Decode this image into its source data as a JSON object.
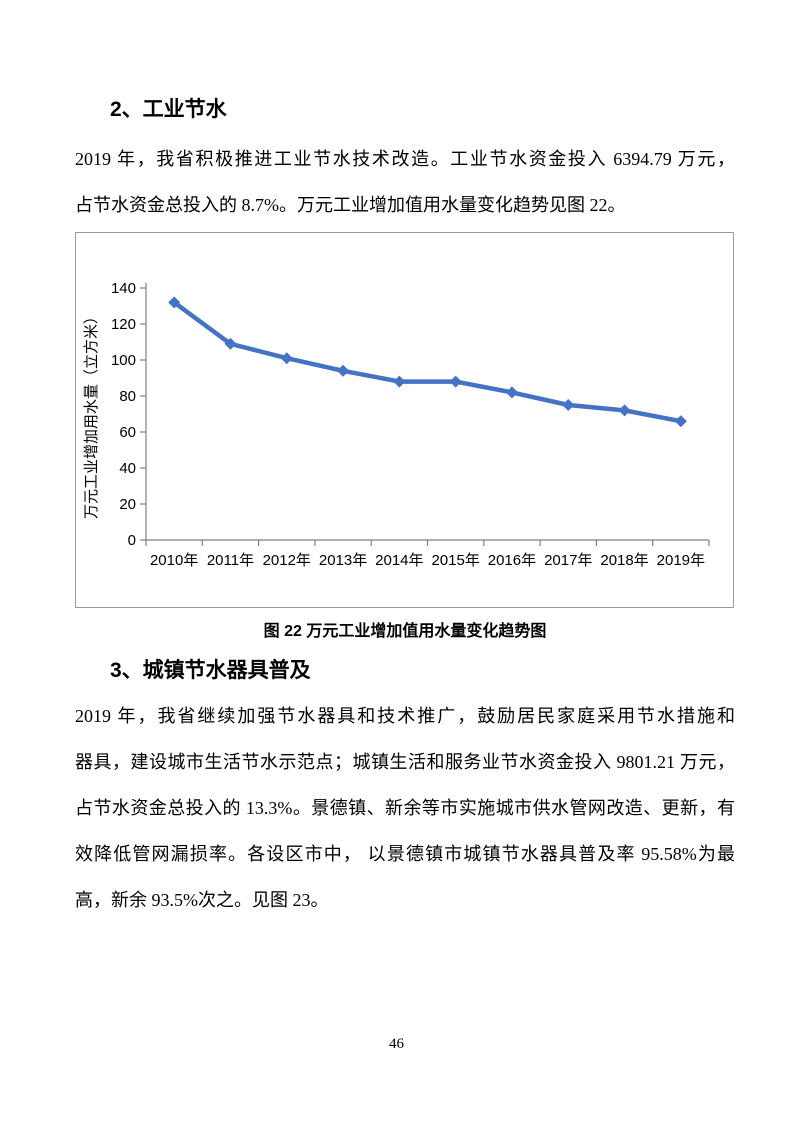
{
  "page": {
    "number": "46"
  },
  "section2": {
    "heading": "2、工业节水",
    "paragraph_lines": [
      "2019 年，我省积极推进工业节水技术改造。工业节水资金投入 6394.79 万元，",
      "占节水资金总投入的 8.7%。万元工业增加值用水量变化趋势见图 22。"
    ]
  },
  "figure22": {
    "caption": "图 22 万元工业增加值用水量变化趋势图"
  },
  "section3": {
    "heading": "3、城镇节水器具普及",
    "paragraph_lines": [
      "2019 年，我省继续加强节水器具和技术推广，鼓励居民家庭采用节水措施和",
      "器具，建设城市生活节水示范点；城镇生活和服务业节水资金投入 9801.21 万元，",
      "占节水资金总投入的 13.3%。景德镇、新余等市实施城市供水管网改造、更新，有",
      "效降低管网漏损率。各设区市中， 以景德镇市城镇节水器具普及率 95.58%为最",
      "高，新余 93.5%次之。见图 23。"
    ]
  },
  "chart_data": {
    "type": "line",
    "title": "",
    "xlabel": "",
    "ylabel": "万元工业增加用水量（立方米）",
    "categories": [
      "2010年",
      "2011年",
      "2012年",
      "2013年",
      "2014年",
      "2015年",
      "2016年",
      "2017年",
      "2018年",
      "2019年"
    ],
    "series": [
      {
        "name": "万元工业增加值用水量",
        "values": [
          132,
          109,
          101,
          94,
          88,
          88,
          82,
          75,
          72,
          66
        ]
      }
    ],
    "ylim": [
      0,
      140
    ],
    "ytick_step": 20,
    "grid": false,
    "legend_position": "none",
    "line_color": "#4472C4",
    "axis_color": "#808080",
    "marker": "diamond"
  }
}
